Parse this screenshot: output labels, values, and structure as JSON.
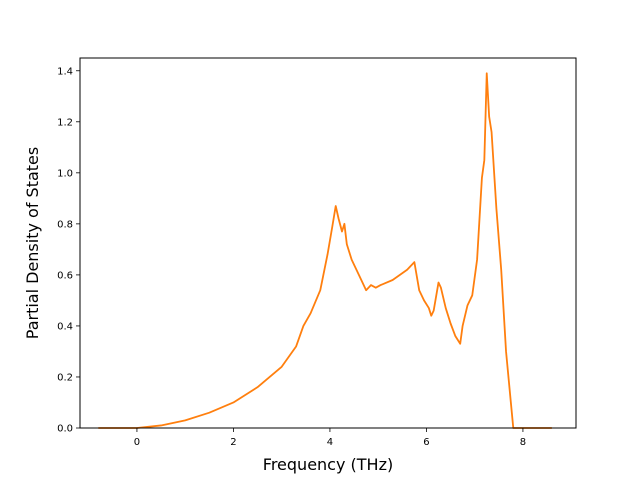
{
  "chart_data": {
    "type": "line",
    "title": "",
    "xlabel": "Frequency (THz)",
    "ylabel": "Partial Density of States",
    "xlim": [
      -1.18,
      9.1
    ],
    "ylim": [
      0.0,
      1.45
    ],
    "xticks": [
      0,
      2,
      4,
      6,
      8
    ],
    "xtick_labels": [
      "0",
      "2",
      "4",
      "6",
      "8"
    ],
    "yticks": [
      0.0,
      0.2,
      0.4,
      0.6,
      0.8,
      1.0,
      1.2,
      1.4
    ],
    "ytick_labels": [
      "0.0",
      "0.2",
      "0.4",
      "0.6",
      "0.8",
      "1.0",
      "1.2",
      "1.4"
    ],
    "grid": false,
    "legend": "none",
    "series": [
      {
        "color": "#ff7f0e",
        "x": [
          -0.8,
          0.0,
          0.5,
          1.0,
          1.5,
          2.0,
          2.5,
          3.0,
          3.3,
          3.45,
          3.6,
          3.8,
          3.95,
          4.05,
          4.12,
          4.18,
          4.25,
          4.3,
          4.35,
          4.45,
          4.6,
          4.75,
          4.85,
          4.95,
          5.05,
          5.3,
          5.6,
          5.75,
          5.85,
          5.95,
          6.05,
          6.1,
          6.15,
          6.25,
          6.3,
          6.4,
          6.5,
          6.6,
          6.7,
          6.75,
          6.85,
          6.95,
          7.05,
          7.15,
          7.2,
          7.25,
          7.3,
          7.35,
          7.45,
          7.55,
          7.65,
          7.75,
          7.8,
          8.0,
          8.6
        ],
        "y": [
          0.0,
          0.0,
          0.01,
          0.03,
          0.06,
          0.1,
          0.16,
          0.24,
          0.32,
          0.4,
          0.45,
          0.54,
          0.68,
          0.79,
          0.87,
          0.82,
          0.77,
          0.8,
          0.72,
          0.66,
          0.6,
          0.54,
          0.56,
          0.55,
          0.56,
          0.58,
          0.62,
          0.65,
          0.54,
          0.5,
          0.47,
          0.44,
          0.46,
          0.57,
          0.55,
          0.47,
          0.41,
          0.36,
          0.33,
          0.4,
          0.48,
          0.52,
          0.66,
          0.98,
          1.05,
          1.39,
          1.22,
          1.16,
          0.86,
          0.62,
          0.3,
          0.1,
          0.0,
          0.0,
          0.0
        ]
      }
    ]
  }
}
